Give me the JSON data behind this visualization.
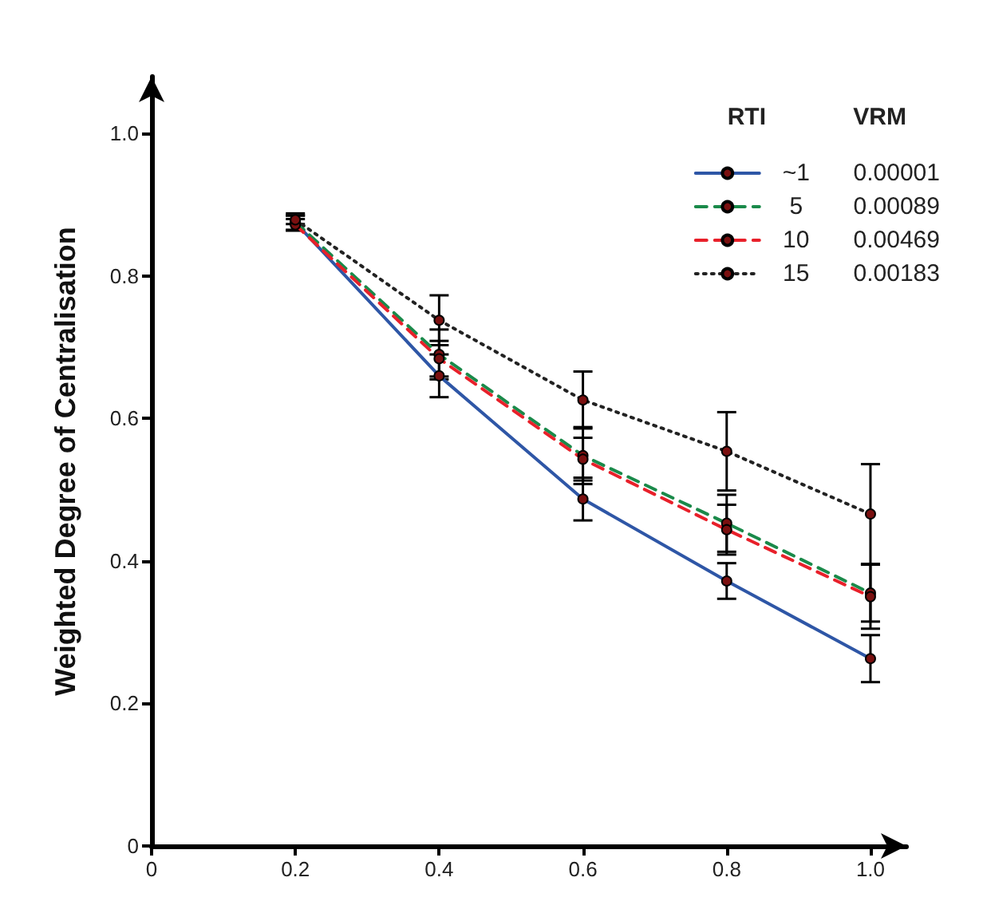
{
  "chart_data": {
    "type": "line",
    "ylabel": "Weighted Degree of Centralisation",
    "legend_title": "RTI",
    "legend": "top right",
    "marker": "circle",
    "grid": false,
    "x": [
      0.2,
      0.4,
      0.6,
      0.8,
      1.0
    ],
    "xlim": [
      0,
      1.05
    ],
    "xticks": [
      0,
      0.2,
      0.4,
      0.6,
      0.8,
      {
        "value": 1,
        "label": "1.0"
      }
    ],
    "ylim": [
      0,
      1.08
    ],
    "yticks": [
      0,
      0.2,
      0.4,
      0.6,
      0.8,
      {
        "value": 1,
        "label": "1.0"
      }
    ],
    "series": [
      {
        "name": "~1",
        "color": "#2e56a6",
        "line_style": "solid",
        "values": [
          0.875,
          0.66,
          0.487,
          0.372,
          0.263
        ],
        "errors": [
          0.01,
          0.03,
          0.03,
          0.025,
          0.033
        ]
      },
      {
        "name": "5",
        "color": "#1a8a4a",
        "line_style": "dashed",
        "values": [
          0.876,
          0.69,
          0.548,
          0.453,
          0.355
        ],
        "errors": [
          0.012,
          0.035,
          0.04,
          0.04,
          0.04
        ]
      },
      {
        "name": "10",
        "color": "#e8202a",
        "line_style": "dashed",
        "values": [
          0.872,
          0.684,
          0.543,
          0.444,
          0.35
        ],
        "errors": [
          0.008,
          0.025,
          0.03,
          0.035,
          0.045
        ]
      },
      {
        "name": "15",
        "color": "#222222",
        "line_style": "dotted",
        "values": [
          0.879,
          0.738,
          0.626,
          0.554,
          0.466
        ],
        "errors": [
          0.006,
          0.035,
          0.04,
          0.055,
          0.07
        ]
      }
    ],
    "annotations": [
      "VRM",
      "0.00001",
      "0.00089",
      "0.00469",
      "0.00183"
    ]
  }
}
